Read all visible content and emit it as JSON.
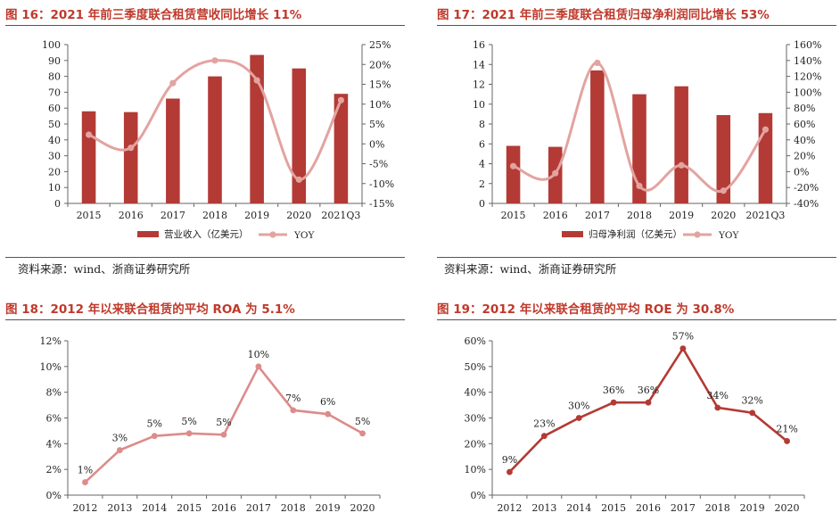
{
  "fig16": {
    "title": "图 16：2021 年前三季度联合租赁营收同比增长 11%",
    "source": "资料来源：wind、浙商证券研究所"
  },
  "fig17": {
    "title": "图 17：2021 年前三季度联合租赁归母净利润同比增长 53%",
    "source": "资料来源：wind、浙商证券研究所"
  },
  "fig18": {
    "title": "图 18：2012 年以来联合租赁的平均 ROA 为 5.1%"
  },
  "fig19": {
    "title": "图 19：2012 年以来联合租赁的平均 ROE 为 30.8%"
  },
  "colors": {
    "bar": "#b33a35",
    "yoy": "#e3a3a0",
    "roa": "#dc8c8a",
    "roe": "#b33a35",
    "title": "#c0392b"
  },
  "chart_data": [
    {
      "id": "fig16",
      "type": "bar",
      "categories": [
        "2015",
        "2016",
        "2017",
        "2018",
        "2019",
        "2020",
        "2021Q3"
      ],
      "series": [
        {
          "name": "营业收入（亿美元）",
          "type": "bar",
          "axis": "left",
          "values": [
            58,
            57.5,
            66,
            80,
            93.5,
            85,
            69
          ]
        },
        {
          "name": "YOY",
          "type": "line",
          "axis": "right",
          "smooth": true,
          "values": [
            2.3,
            -1.0,
            15.3,
            21.0,
            16.0,
            -9.0,
            11.0
          ]
        }
      ],
      "left_axis": {
        "min": 0,
        "max": 100,
        "step": 10,
        "ticks": [
          "0",
          "10",
          "20",
          "30",
          "40",
          "50",
          "60",
          "70",
          "80",
          "90",
          "100"
        ]
      },
      "right_axis": {
        "min": -15,
        "max": 25,
        "step": 5,
        "ticks": [
          "-15%",
          "-10%",
          "-5%",
          "0%",
          "5%",
          "10%",
          "15%",
          "20%",
          "25%"
        ]
      },
      "legend": [
        "营业收入（亿美元）",
        "YOY"
      ],
      "legend_position": "bottom",
      "grid": false
    },
    {
      "id": "fig17",
      "type": "bar",
      "categories": [
        "2015",
        "2016",
        "2017",
        "2018",
        "2019",
        "2020",
        "2021Q3"
      ],
      "series": [
        {
          "name": "归母净利润（亿美元）",
          "type": "bar",
          "axis": "left",
          "values": [
            5.8,
            5.7,
            13.4,
            11.0,
            11.8,
            8.9,
            9.1
          ]
        },
        {
          "name": "YOY",
          "type": "line",
          "axis": "right",
          "smooth": true,
          "values": [
            7,
            -2,
            137,
            -18,
            8,
            -24,
            53
          ]
        }
      ],
      "left_axis": {
        "min": 0,
        "max": 16,
        "step": 2,
        "ticks": [
          "0",
          "2",
          "4",
          "6",
          "8",
          "10",
          "12",
          "14",
          "16"
        ]
      },
      "right_axis": {
        "min": -40,
        "max": 160,
        "step": 20,
        "ticks": [
          "-40%",
          "-20%",
          "0%",
          "20%",
          "40%",
          "60%",
          "80%",
          "100%",
          "120%",
          "140%",
          "160%"
        ]
      },
      "legend": [
        "归母净利润（亿美元）",
        "YOY"
      ],
      "legend_position": "bottom",
      "grid": false
    },
    {
      "id": "fig18",
      "type": "line",
      "categories": [
        "2012",
        "2013",
        "2014",
        "2015",
        "2016",
        "2017",
        "2018",
        "2019",
        "2020"
      ],
      "series": [
        {
          "name": "ROA",
          "values": [
            1.0,
            3.5,
            4.6,
            4.8,
            4.7,
            10.0,
            6.6,
            6.3,
            4.8
          ],
          "labels": [
            "1%",
            "3%",
            "5%",
            "5%",
            "5%",
            "10%",
            "7%",
            "6%",
            "5%"
          ]
        }
      ],
      "y_axis": {
        "min": 0,
        "max": 12,
        "step": 2,
        "ticks": [
          "0%",
          "2%",
          "4%",
          "6%",
          "8%",
          "10%",
          "12%"
        ]
      },
      "grid": false
    },
    {
      "id": "fig19",
      "type": "line",
      "categories": [
        "2012",
        "2013",
        "2014",
        "2015",
        "2016",
        "2017",
        "2018",
        "2019",
        "2020"
      ],
      "series": [
        {
          "name": "ROE",
          "values": [
            9,
            23,
            30,
            36,
            36,
            57,
            34,
            32,
            21
          ],
          "labels": [
            "9%",
            "23%",
            "30%",
            "36%",
            "36%",
            "57%",
            "34%",
            "32%",
            "21%"
          ]
        }
      ],
      "y_axis": {
        "min": 0,
        "max": 60,
        "step": 10,
        "ticks": [
          "0%",
          "10%",
          "20%",
          "30%",
          "40%",
          "50%",
          "60%"
        ]
      },
      "grid": false
    }
  ]
}
